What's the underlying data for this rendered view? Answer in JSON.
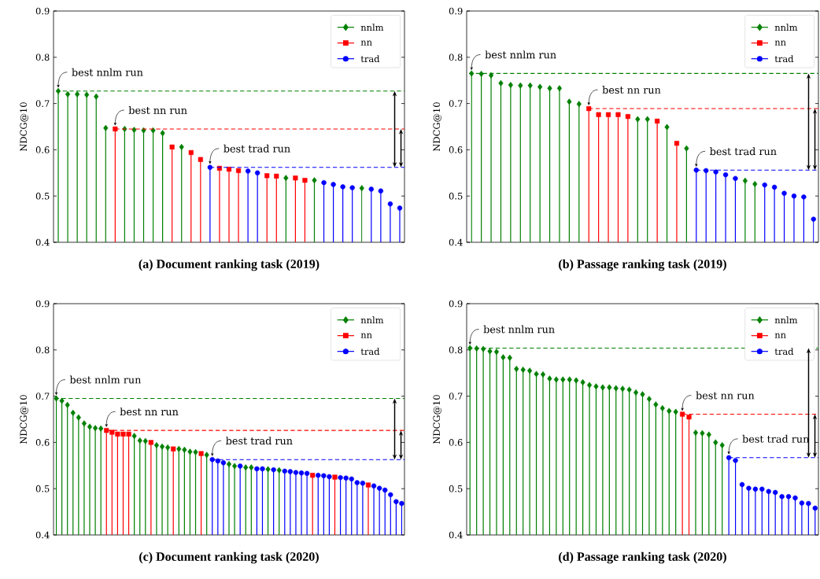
{
  "chart_data": [
    {
      "type": "lollipop",
      "title": "(a) Document ranking task (2019)",
      "ylabel": "NDCG@10",
      "categories": [
        null,
        null,
        null,
        null,
        null,
        null,
        null,
        null,
        null,
        null,
        null,
        null,
        null,
        null,
        null,
        null,
        null,
        null,
        null,
        null,
        null,
        null,
        null,
        null,
        null,
        null,
        null,
        null,
        null,
        null,
        null,
        null,
        null,
        null,
        null,
        null,
        null
      ],
      "series": [
        {
          "name": "nnlm",
          "color": "#008000",
          "marker": "diamond",
          "values": [
            0.727,
            0.72,
            0.72,
            0.719,
            0.715,
            0.647,
            null,
            0.645,
            0.643,
            0.642,
            0.642,
            0.636,
            null,
            0.606,
            null,
            null,
            null,
            null,
            null,
            null,
            null,
            null,
            null,
            null,
            0.539,
            null,
            null,
            0.534,
            null,
            null,
            null,
            null,
            0.517,
            null,
            null,
            null,
            null
          ]
        },
        {
          "name": "nn",
          "color": "#ff0000",
          "marker": "square",
          "values": [
            null,
            null,
            null,
            null,
            null,
            null,
            0.645,
            null,
            null,
            null,
            null,
            null,
            0.606,
            null,
            0.594,
            0.579,
            null,
            0.56,
            0.558,
            0.555,
            null,
            null,
            0.544,
            0.543,
            null,
            0.539,
            0.534,
            null,
            null,
            null,
            null,
            null,
            null,
            null,
            null,
            null,
            null
          ]
        },
        {
          "name": "trad",
          "color": "#0000ff",
          "marker": "circle",
          "values": [
            null,
            null,
            null,
            null,
            null,
            null,
            null,
            null,
            null,
            null,
            null,
            null,
            null,
            null,
            null,
            null,
            0.562,
            null,
            null,
            null,
            0.554,
            0.55,
            null,
            null,
            null,
            null,
            null,
            null,
            0.529,
            0.525,
            0.52,
            0.518,
            null,
            0.515,
            0.511,
            0.483,
            0.474
          ]
        }
      ],
      "ylim": [
        0.4,
        0.9
      ],
      "yticks": [
        0.4,
        0.5,
        0.6,
        0.7,
        0.8,
        0.9
      ],
      "legend": "top right",
      "tick_labels": "y",
      "ref_lines": [
        {
          "axis": "y",
          "value": 0.727,
          "label": "best nnlm run",
          "color": "#008000",
          "line_style": "dashed"
        },
        {
          "axis": "y",
          "value": 0.645,
          "label": "best nn run",
          "color": "#ff0000",
          "line_style": "dashed"
        },
        {
          "axis": "y",
          "value": 0.562,
          "label": "best trad run",
          "color": "#0000ff",
          "line_style": "dashed"
        }
      ]
    },
    {
      "type": "lollipop",
      "title": "(b) Passage ranking task (2019)",
      "ylabel": "NDCG@10",
      "categories": [
        null,
        null,
        null,
        null,
        null,
        null,
        null,
        null,
        null,
        null,
        null,
        null,
        null,
        null,
        null,
        null,
        null,
        null,
        null,
        null,
        null,
        null,
        null,
        null,
        null,
        null,
        null,
        null,
        null,
        null,
        null,
        null,
        null,
        null,
        null,
        null
      ],
      "series": [
        {
          "name": "nnlm",
          "color": "#008000",
          "marker": "diamond",
          "values": [
            0.765,
            0.764,
            0.761,
            0.744,
            0.74,
            0.739,
            0.739,
            0.736,
            0.733,
            0.733,
            0.704,
            0.699,
            null,
            null,
            null,
            null,
            null,
            0.666,
            0.666,
            null,
            0.649,
            null,
            0.603,
            null,
            null,
            null,
            null,
            null,
            0.533,
            0.526,
            null,
            null,
            null,
            null,
            null,
            null
          ]
        },
        {
          "name": "nn",
          "color": "#ff0000",
          "marker": "square",
          "values": [
            null,
            null,
            null,
            null,
            null,
            null,
            null,
            null,
            null,
            null,
            null,
            null,
            0.689,
            0.676,
            0.676,
            0.676,
            0.672,
            null,
            null,
            0.662,
            null,
            0.614,
            null,
            null,
            null,
            null,
            null,
            null,
            null,
            null,
            null,
            null,
            null,
            null,
            null,
            null
          ]
        },
        {
          "name": "trad",
          "color": "#0000ff",
          "marker": "circle",
          "values": [
            null,
            null,
            null,
            null,
            null,
            null,
            null,
            null,
            null,
            null,
            null,
            null,
            null,
            null,
            null,
            null,
            null,
            null,
            null,
            null,
            null,
            null,
            null,
            0.556,
            0.555,
            0.552,
            0.546,
            0.538,
            null,
            null,
            0.524,
            0.519,
            0.506,
            0.5,
            0.498,
            0.45
          ]
        }
      ],
      "ylim": [
        0.4,
        0.9
      ],
      "yticks": [
        0.4,
        0.5,
        0.6,
        0.7,
        0.8,
        0.9
      ],
      "legend": "top right",
      "tick_labels": "y",
      "ref_lines": [
        {
          "axis": "y",
          "value": 0.765,
          "label": "best nnlm run",
          "color": "#008000",
          "line_style": "dashed"
        },
        {
          "axis": "y",
          "value": 0.689,
          "label": "best nn run",
          "color": "#ff0000",
          "line_style": "dashed"
        },
        {
          "axis": "y",
          "value": 0.556,
          "label": "best trad run",
          "color": "#0000ff",
          "line_style": "dashed"
        }
      ]
    },
    {
      "type": "lollipop",
      "title": "(c) Document ranking task (2020)",
      "ylabel": "NDCG@10",
      "categories": [
        null,
        null,
        null,
        null,
        null,
        null,
        null,
        null,
        null,
        null,
        null,
        null,
        null,
        null,
        null,
        null,
        null,
        null,
        null,
        null,
        null,
        null,
        null,
        null,
        null,
        null,
        null,
        null,
        null,
        null,
        null,
        null,
        null,
        null,
        null,
        null,
        null,
        null,
        null,
        null,
        null,
        null,
        null,
        null,
        null,
        null,
        null,
        null,
        null,
        null,
        null,
        null,
        null,
        null,
        null,
        null,
        null,
        null,
        null,
        null,
        null,
        null,
        null
      ],
      "series": [
        {
          "name": "nnlm",
          "color": "#008000",
          "marker": "diamond",
          "values": [
            0.695,
            0.69,
            0.681,
            0.664,
            0.654,
            0.641,
            0.634,
            0.631,
            0.63,
            null,
            null,
            null,
            null,
            null,
            0.614,
            0.604,
            0.603,
            null,
            0.594,
            0.591,
            0.589,
            null,
            0.586,
            0.584,
            0.58,
            0.579,
            null,
            0.573,
            null,
            null,
            null,
            0.553,
            0.549,
            null,
            0.546,
            0.546,
            null,
            null,
            0.542,
            null,
            0.54,
            null,
            null,
            null,
            null,
            null,
            null,
            null,
            null,
            null,
            null,
            null,
            null,
            null,
            null,
            null,
            null,
            null,
            null,
            null,
            null,
            null,
            null
          ]
        },
        {
          "name": "nn",
          "color": "#ff0000",
          "marker": "square",
          "values": [
            null,
            null,
            null,
            null,
            null,
            null,
            null,
            null,
            null,
            0.626,
            0.622,
            0.618,
            0.618,
            0.618,
            null,
            null,
            null,
            0.6,
            null,
            null,
            null,
            0.586,
            null,
            null,
            null,
            null,
            0.576,
            null,
            null,
            null,
            null,
            null,
            null,
            null,
            null,
            null,
            null,
            null,
            null,
            null,
            null,
            null,
            null,
            null,
            null,
            null,
            0.529,
            null,
            null,
            null,
            0.525,
            null,
            null,
            null,
            null,
            null,
            0.508,
            null,
            null,
            null,
            null,
            null,
            null
          ]
        },
        {
          "name": "trad",
          "color": "#0000ff",
          "marker": "circle",
          "values": [
            null,
            null,
            null,
            null,
            null,
            null,
            null,
            null,
            null,
            null,
            null,
            null,
            null,
            null,
            null,
            null,
            null,
            null,
            null,
            null,
            null,
            null,
            null,
            null,
            null,
            null,
            null,
            null,
            0.563,
            0.56,
            0.556,
            null,
            null,
            0.549,
            null,
            null,
            0.543,
            0.543,
            null,
            0.541,
            null,
            0.538,
            0.537,
            0.535,
            0.534,
            0.533,
            null,
            0.529,
            0.528,
            0.526,
            null,
            0.524,
            0.523,
            0.521,
            0.513,
            0.512,
            null,
            0.506,
            0.501,
            0.497,
            0.487,
            0.472,
            0.468
          ]
        }
      ],
      "ylim": [
        0.4,
        0.9
      ],
      "yticks": [
        0.4,
        0.5,
        0.6,
        0.7,
        0.8,
        0.9
      ],
      "legend": "top right",
      "tick_labels": "y",
      "ref_lines": [
        {
          "axis": "y",
          "value": 0.695,
          "label": "best nnlm run",
          "color": "#008000",
          "line_style": "dashed"
        },
        {
          "axis": "y",
          "value": 0.626,
          "label": "best nn run",
          "color": "#ff0000",
          "line_style": "dashed"
        },
        {
          "axis": "y",
          "value": 0.563,
          "label": "best trad run",
          "color": "#0000ff",
          "line_style": "dashed"
        }
      ]
    },
    {
      "type": "lollipop",
      "title": "(d) Passage ranking task (2020)",
      "ylabel": "NDCG@10",
      "categories": [
        null,
        null,
        null,
        null,
        null,
        null,
        null,
        null,
        null,
        null,
        null,
        null,
        null,
        null,
        null,
        null,
        null,
        null,
        null,
        null,
        null,
        null,
        null,
        null,
        null,
        null,
        null,
        null,
        null,
        null,
        null,
        null,
        null,
        null,
        null,
        null,
        null,
        null,
        null,
        null,
        null,
        null,
        null,
        null,
        null,
        null,
        null,
        null,
        null,
        null,
        null,
        null,
        null
      ],
      "series": [
        {
          "name": "nnlm",
          "color": "#008000",
          "marker": "diamond",
          "values": [
            0.804,
            0.803,
            0.802,
            0.797,
            0.796,
            0.784,
            0.783,
            0.759,
            0.757,
            0.755,
            0.748,
            0.747,
            0.738,
            0.736,
            0.736,
            0.736,
            0.734,
            0.73,
            0.724,
            0.721,
            0.719,
            0.719,
            0.717,
            0.716,
            0.714,
            0.708,
            0.704,
            0.694,
            0.682,
            0.674,
            0.668,
            0.666,
            null,
            null,
            0.621,
            0.62,
            0.617,
            0.6,
            0.594,
            null,
            null,
            null,
            null,
            null,
            null,
            null,
            null,
            null,
            null,
            null,
            null,
            null,
            null
          ]
        },
        {
          "name": "nn",
          "color": "#ff0000",
          "marker": "square",
          "values": [
            null,
            null,
            null,
            null,
            null,
            null,
            null,
            null,
            null,
            null,
            null,
            null,
            null,
            null,
            null,
            null,
            null,
            null,
            null,
            null,
            null,
            null,
            null,
            null,
            null,
            null,
            null,
            null,
            null,
            null,
            null,
            null,
            0.661,
            0.655,
            null,
            null,
            null,
            null,
            null,
            null,
            null,
            null,
            null,
            null,
            null,
            null,
            null,
            null,
            null,
            null,
            null,
            null,
            null
          ]
        },
        {
          "name": "trad",
          "color": "#0000ff",
          "marker": "circle",
          "values": [
            null,
            null,
            null,
            null,
            null,
            null,
            null,
            null,
            null,
            null,
            null,
            null,
            null,
            null,
            null,
            null,
            null,
            null,
            null,
            null,
            null,
            null,
            null,
            null,
            null,
            null,
            null,
            null,
            null,
            null,
            null,
            null,
            null,
            null,
            null,
            null,
            null,
            null,
            null,
            0.567,
            0.561,
            0.509,
            0.501,
            0.499,
            0.499,
            0.494,
            0.492,
            0.483,
            0.483,
            0.48,
            0.469,
            0.468,
            0.458
          ]
        }
      ],
      "ylim": [
        0.4,
        0.9
      ],
      "yticks": [
        0.4,
        0.5,
        0.6,
        0.7,
        0.8,
        0.9
      ],
      "legend": "top right",
      "tick_labels": "y",
      "ref_lines": [
        {
          "axis": "y",
          "value": 0.804,
          "label": "best nnlm run",
          "color": "#008000",
          "line_style": "dashed"
        },
        {
          "axis": "y",
          "value": 0.661,
          "label": "best nn run",
          "color": "#ff0000",
          "line_style": "dashed"
        },
        {
          "axis": "y",
          "value": 0.567,
          "label": "best trad run",
          "color": "#0000ff",
          "line_style": "dashed"
        }
      ]
    }
  ]
}
